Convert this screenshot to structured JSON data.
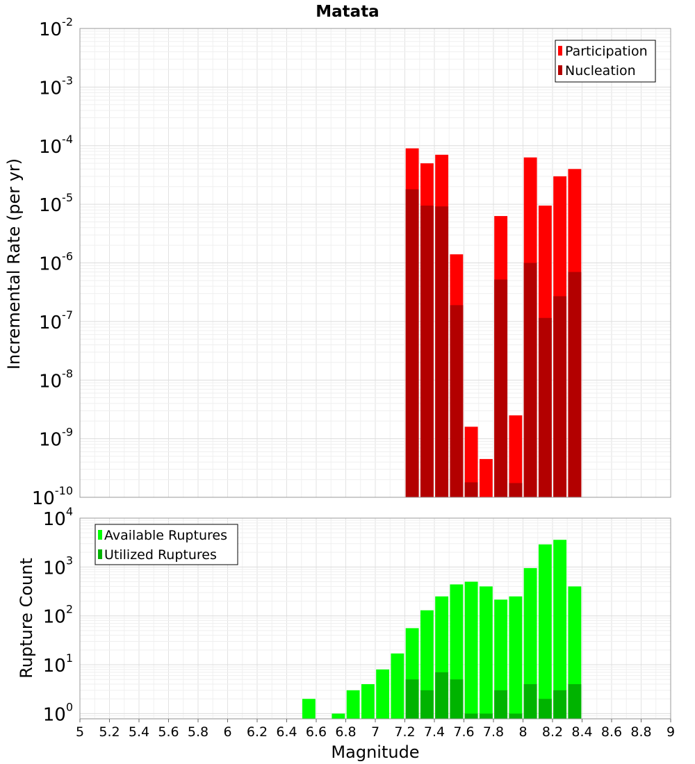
{
  "chart_data": [
    {
      "type": "bar",
      "title": "Matata",
      "xlabel": "",
      "ylabel": "Incremental Rate (per yr)",
      "xlim": [
        5,
        9
      ],
      "ylim": [
        1e-10,
        0.01
      ],
      "y_scale": "log",
      "bar_width": 0.1,
      "grid": true,
      "legend_placement": "top-right",
      "ytick_labels": [
        {
          "base": "10",
          "exp": "-10"
        },
        {
          "base": "10",
          "exp": "-9"
        },
        {
          "base": "10",
          "exp": "-8"
        },
        {
          "base": "10",
          "exp": "-7"
        },
        {
          "base": "10",
          "exp": "-6"
        },
        {
          "base": "10",
          "exp": "-5"
        },
        {
          "base": "10",
          "exp": "-4"
        },
        {
          "base": "10",
          "exp": "-3"
        },
        {
          "base": "10",
          "exp": "-2"
        }
      ],
      "x": [
        7.25,
        7.35,
        7.45,
        7.55,
        7.65,
        7.75,
        7.85,
        7.95,
        8.05,
        8.15,
        8.25,
        8.35
      ],
      "series": [
        {
          "name": "Participation",
          "color": "#ff0000",
          "values": [
            9e-05,
            5e-05,
            7e-05,
            1.4e-06,
            1.6e-09,
            4.5e-10,
            6.3e-06,
            2.5e-09,
            6.3e-05,
            9.5e-06,
            3e-05,
            4e-05
          ]
        },
        {
          "name": "Nucleation",
          "color": "#b30000",
          "values": [
            1.8e-05,
            9.5e-06,
            9.2e-06,
            1.9e-07,
            1.8e-10,
            null,
            5.2e-07,
            1.75e-10,
            1e-06,
            1.15e-07,
            2.7e-07,
            7e-07
          ]
        }
      ]
    },
    {
      "type": "bar",
      "title": "",
      "xlabel": "Magnitude",
      "ylabel": "Rupture Count",
      "xlim": [
        5,
        9
      ],
      "ylim": [
        0.78,
        10000
      ],
      "y_scale": "log",
      "bar_width": 0.1,
      "grid": true,
      "legend_placement": "top-left",
      "xtick_labels": [
        "5",
        "5.2",
        "5.4",
        "5.6",
        "5.8",
        "6",
        "6.2",
        "6.4",
        "6.6",
        "6.8",
        "7",
        "7.2",
        "7.4",
        "7.6",
        "7.8",
        "8",
        "8.2",
        "8.4",
        "8.6",
        "8.8",
        "9"
      ],
      "ytick_labels": [
        {
          "base": "10",
          "exp": "0"
        },
        {
          "base": "10",
          "exp": "1"
        },
        {
          "base": "10",
          "exp": "2"
        },
        {
          "base": "10",
          "exp": "3"
        },
        {
          "base": "10",
          "exp": "4"
        }
      ],
      "x": [
        6.55,
        6.75,
        6.85,
        6.95,
        7.05,
        7.15,
        7.25,
        7.35,
        7.45,
        7.55,
        7.65,
        7.75,
        7.85,
        7.95,
        8.05,
        8.15,
        8.25,
        8.35
      ],
      "series": [
        {
          "name": "Available Ruptures",
          "color": "#00ff00",
          "values": [
            2,
            1,
            3,
            4,
            8,
            17,
            56,
            130,
            250,
            440,
            500,
            400,
            215,
            250,
            950,
            2900,
            3600,
            400
          ]
        },
        {
          "name": "Utilized Ruptures",
          "color": "#00b300",
          "values": [
            null,
            null,
            null,
            null,
            null,
            null,
            5,
            3,
            7,
            5,
            1,
            1,
            3,
            1,
            4,
            2,
            3,
            4
          ]
        }
      ]
    }
  ]
}
